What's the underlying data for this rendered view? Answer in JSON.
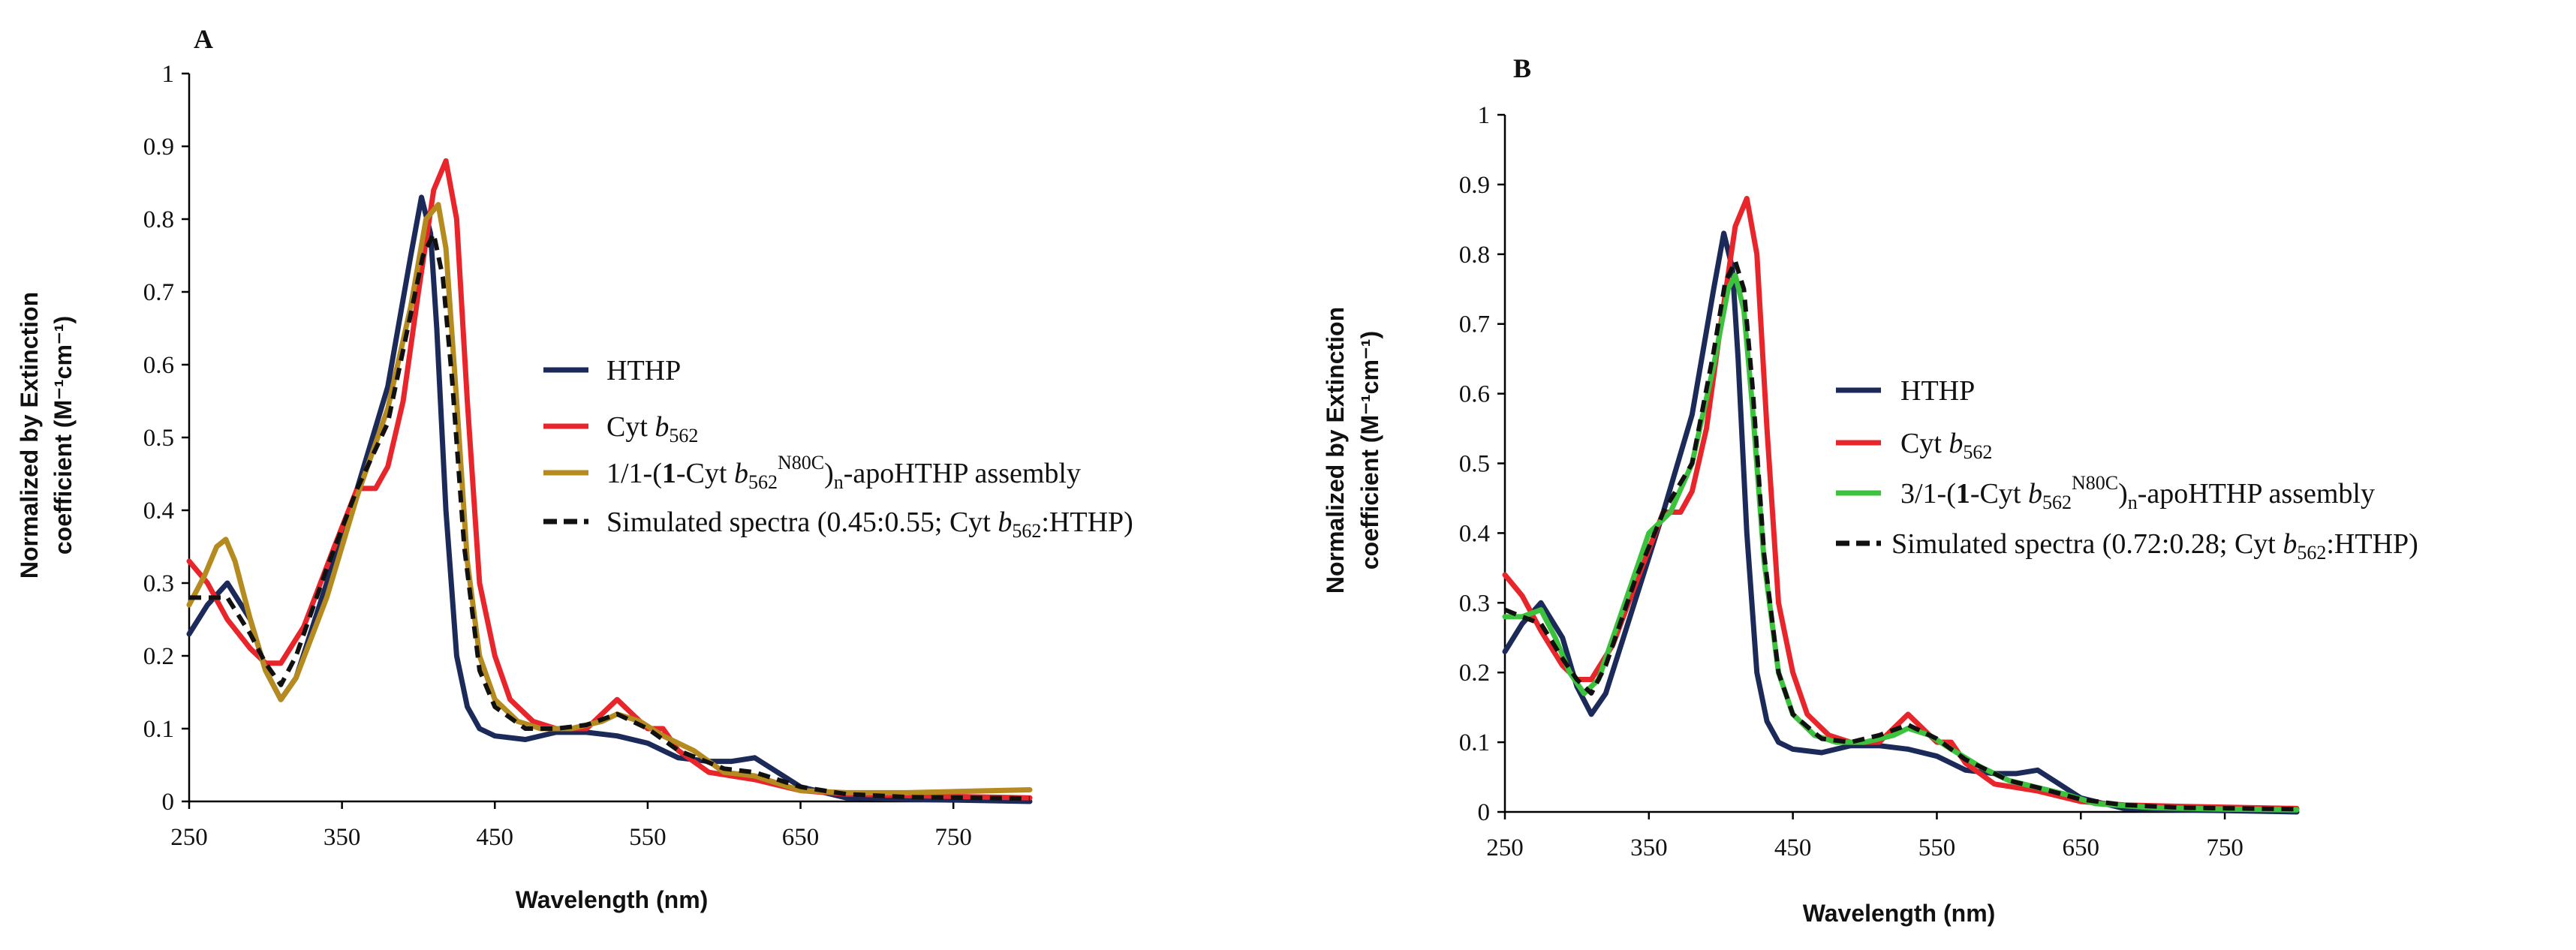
{
  "chart_data": [
    {
      "type": "line",
      "panel": "A",
      "xlabel": "Wavelength (nm)",
      "ylabel_line1": "Normalized by Extinction",
      "ylabel_line2": "coefficient (M⁻¹cm⁻¹)",
      "xlim": [
        250,
        800
      ],
      "ylim": [
        0,
        1
      ],
      "xticks": [
        "250",
        "350",
        "450",
        "550",
        "650",
        "750"
      ],
      "yticks": [
        "0",
        "0.1",
        "0.2",
        "0.3",
        "0.4",
        "0.5",
        "0.6",
        "0.7",
        "0.8",
        "0.9",
        "1"
      ],
      "legend": [
        {
          "label": "HTHP",
          "color": "#1c2a5a",
          "dash": "solid"
        },
        {
          "label": "Cyt b562",
          "color": "#e8252b",
          "dash": "solid"
        },
        {
          "label": "1/1-(1-Cyt b562N80C)n-apoHTHP assembly",
          "color": "#b58a1e",
          "dash": "solid"
        },
        {
          "label": "Simulated spectra (0.45:0.55; Cyt b562:HTHP)",
          "color": "#111111",
          "dash": "dashed"
        }
      ],
      "series": [
        {
          "name": "HTHP",
          "color": "#1c2a5a",
          "dash": "solid",
          "x": [
            250,
            262,
            275,
            290,
            300,
            310,
            320,
            340,
            360,
            380,
            395,
            402,
            408,
            412,
            418,
            425,
            432,
            440,
            450,
            470,
            490,
            510,
            530,
            550,
            570,
            590,
            605,
            620,
            635,
            650,
            680,
            720,
            800
          ],
          "y": [
            0.23,
            0.27,
            0.3,
            0.25,
            0.18,
            0.14,
            0.17,
            0.3,
            0.43,
            0.57,
            0.75,
            0.83,
            0.78,
            0.65,
            0.4,
            0.2,
            0.13,
            0.1,
            0.09,
            0.085,
            0.095,
            0.095,
            0.09,
            0.08,
            0.06,
            0.055,
            0.055,
            0.06,
            0.04,
            0.02,
            0.005,
            0.003,
            0.0
          ]
        },
        {
          "name": "Cyt b562",
          "color": "#e8252b",
          "dash": "solid",
          "x": [
            250,
            262,
            275,
            290,
            300,
            310,
            325,
            345,
            360,
            372,
            380,
            390,
            400,
            410,
            418,
            425,
            432,
            440,
            450,
            460,
            475,
            490,
            510,
            520,
            530,
            540,
            550,
            560,
            570,
            590,
            620,
            650,
            680,
            720,
            800
          ],
          "y": [
            0.33,
            0.3,
            0.25,
            0.21,
            0.19,
            0.19,
            0.24,
            0.35,
            0.43,
            0.43,
            0.46,
            0.55,
            0.7,
            0.84,
            0.88,
            0.8,
            0.55,
            0.3,
            0.2,
            0.14,
            0.11,
            0.1,
            0.1,
            0.12,
            0.14,
            0.12,
            0.1,
            0.1,
            0.07,
            0.04,
            0.03,
            0.015,
            0.01,
            0.008,
            0.005
          ]
        },
        {
          "name": "1/1-(1-Cyt b562N80C)n-apoHTHP assembly",
          "color": "#b58a1e",
          "dash": "solid",
          "x": [
            250,
            260,
            268,
            274,
            280,
            290,
            300,
            310,
            320,
            340,
            360,
            380,
            395,
            405,
            413,
            418,
            425,
            432,
            440,
            450,
            465,
            480,
            500,
            520,
            530,
            545,
            560,
            580,
            600,
            620,
            650,
            680,
            720,
            760,
            800
          ],
          "y": [
            0.27,
            0.31,
            0.35,
            0.36,
            0.33,
            0.25,
            0.18,
            0.14,
            0.17,
            0.28,
            0.42,
            0.54,
            0.68,
            0.8,
            0.82,
            0.76,
            0.55,
            0.33,
            0.2,
            0.14,
            0.11,
            0.1,
            0.1,
            0.11,
            0.12,
            0.11,
            0.09,
            0.07,
            0.04,
            0.035,
            0.015,
            0.012,
            0.012,
            0.014,
            0.016
          ]
        },
        {
          "name": "Simulated spectra (0.45:0.55; Cyt b562:HTHP)",
          "color": "#111111",
          "dash": "dashed",
          "x": [
            250,
            262,
            275,
            290,
            300,
            310,
            320,
            340,
            360,
            380,
            395,
            403,
            410,
            416,
            422,
            430,
            440,
            450,
            470,
            490,
            510,
            530,
            550,
            570,
            600,
            620,
            650,
            680,
            720,
            800
          ],
          "y": [
            0.28,
            0.28,
            0.28,
            0.23,
            0.19,
            0.16,
            0.2,
            0.32,
            0.43,
            0.52,
            0.67,
            0.75,
            0.78,
            0.72,
            0.58,
            0.35,
            0.18,
            0.13,
            0.1,
            0.1,
            0.105,
            0.12,
            0.1,
            0.07,
            0.045,
            0.04,
            0.02,
            0.01,
            0.006,
            0.004
          ]
        }
      ]
    },
    {
      "type": "line",
      "panel": "B",
      "xlabel": "Wavelength (nm)",
      "ylabel_line1": "Normalized by Extinction",
      "ylabel_line2": "coefficient (M⁻¹cm⁻¹)",
      "xlim": [
        250,
        800
      ],
      "ylim": [
        0,
        1
      ],
      "xticks": [
        "250",
        "350",
        "450",
        "550",
        "650",
        "750"
      ],
      "yticks": [
        "0",
        "0.1",
        "0.2",
        "0.3",
        "0.4",
        "0.5",
        "0.6",
        "0.7",
        "0.8",
        "0.9",
        "1"
      ],
      "legend": [
        {
          "label": "HTHP",
          "color": "#1c2a5a",
          "dash": "solid"
        },
        {
          "label": "Cyt b562",
          "color": "#e8252b",
          "dash": "solid"
        },
        {
          "label": "3/1-(1-Cyt b562N80C)n-apoHTHP assembly",
          "color": "#3cc23c",
          "dash": "solid"
        },
        {
          "label": "Simulated spectra (0.72:0.28; Cyt b562:HTHP)",
          "color": "#111111",
          "dash": "dashed"
        }
      ],
      "series": [
        {
          "name": "HTHP",
          "color": "#1c2a5a",
          "dash": "solid",
          "x": [
            250,
            262,
            275,
            290,
            300,
            310,
            320,
            340,
            360,
            380,
            395,
            402,
            408,
            412,
            418,
            425,
            432,
            440,
            450,
            470,
            490,
            510,
            530,
            550,
            570,
            590,
            605,
            620,
            635,
            650,
            680,
            720,
            800
          ],
          "y": [
            0.23,
            0.27,
            0.3,
            0.25,
            0.18,
            0.14,
            0.17,
            0.3,
            0.43,
            0.57,
            0.75,
            0.83,
            0.78,
            0.65,
            0.4,
            0.2,
            0.13,
            0.1,
            0.09,
            0.085,
            0.095,
            0.095,
            0.09,
            0.08,
            0.06,
            0.055,
            0.055,
            0.06,
            0.04,
            0.02,
            0.005,
            0.003,
            0.0
          ]
        },
        {
          "name": "Cyt b562",
          "color": "#e8252b",
          "dash": "solid",
          "x": [
            250,
            262,
            275,
            290,
            300,
            310,
            325,
            345,
            360,
            372,
            380,
            390,
            400,
            410,
            418,
            425,
            432,
            440,
            450,
            460,
            475,
            490,
            510,
            520,
            530,
            540,
            550,
            560,
            570,
            590,
            620,
            650,
            680,
            720,
            800
          ],
          "y": [
            0.34,
            0.31,
            0.26,
            0.21,
            0.19,
            0.19,
            0.24,
            0.35,
            0.43,
            0.43,
            0.46,
            0.55,
            0.7,
            0.84,
            0.88,
            0.8,
            0.55,
            0.3,
            0.2,
            0.14,
            0.11,
            0.1,
            0.1,
            0.12,
            0.14,
            0.12,
            0.1,
            0.1,
            0.07,
            0.04,
            0.03,
            0.015,
            0.01,
            0.008,
            0.005
          ]
        },
        {
          "name": "3/1-(1-Cyt b562N80C)n-apoHTHP assembly",
          "color": "#3cc23c",
          "dash": "solid",
          "x": [
            250,
            262,
            275,
            285,
            295,
            305,
            315,
            330,
            350,
            365,
            380,
            395,
            405,
            410,
            416,
            422,
            430,
            440,
            450,
            465,
            480,
            500,
            520,
            530,
            545,
            560,
            580,
            600,
            620,
            640,
            660,
            700,
            750,
            800
          ],
          "y": [
            0.28,
            0.28,
            0.29,
            0.25,
            0.2,
            0.17,
            0.19,
            0.28,
            0.4,
            0.43,
            0.5,
            0.64,
            0.75,
            0.77,
            0.72,
            0.58,
            0.36,
            0.2,
            0.14,
            0.11,
            0.1,
            0.1,
            0.11,
            0.12,
            0.11,
            0.09,
            0.065,
            0.045,
            0.035,
            0.025,
            0.012,
            0.006,
            0.004,
            0.003
          ]
        },
        {
          "name": "Simulated spectra (0.72:0.28; Cyt b562:HTHP)",
          "color": "#111111",
          "dash": "dashed",
          "x": [
            250,
            262,
            275,
            290,
            300,
            310,
            320,
            340,
            360,
            380,
            395,
            403,
            410,
            416,
            422,
            430,
            440,
            450,
            470,
            490,
            510,
            530,
            550,
            570,
            600,
            620,
            650,
            680,
            720,
            800
          ],
          "y": [
            0.29,
            0.28,
            0.27,
            0.22,
            0.19,
            0.17,
            0.21,
            0.33,
            0.43,
            0.5,
            0.66,
            0.76,
            0.79,
            0.75,
            0.61,
            0.37,
            0.2,
            0.14,
            0.105,
            0.1,
            0.11,
            0.125,
            0.105,
            0.075,
            0.045,
            0.035,
            0.018,
            0.01,
            0.006,
            0.004
          ]
        }
      ]
    }
  ]
}
